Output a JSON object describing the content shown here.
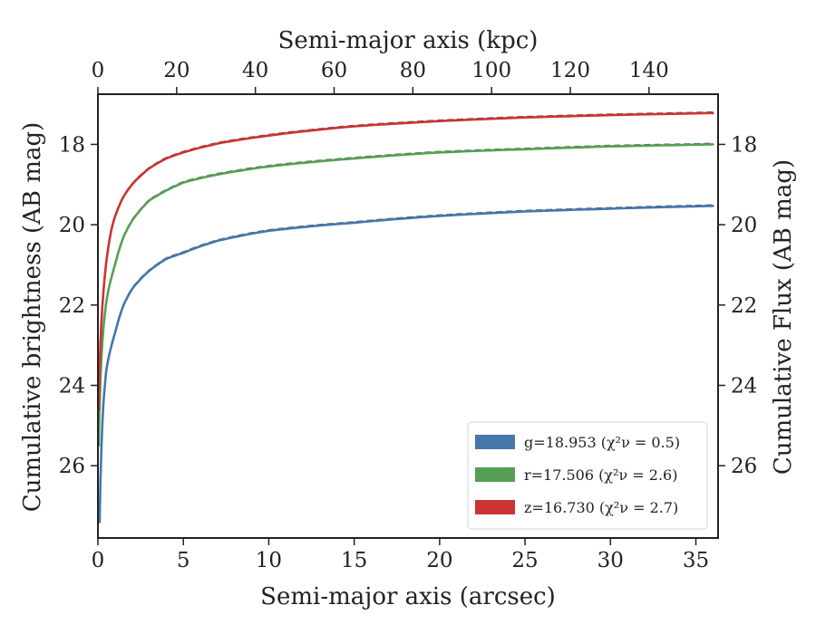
{
  "chart_data": {
    "type": "line",
    "xlabel": "Semi-major axis (arcsec)",
    "ylabel": "Cumulative brightness (AB mag)",
    "x2label": "Semi-major axis (kpc)",
    "y2label": "Cumulative Flux (AB mag)",
    "xlim": [
      0,
      36.3
    ],
    "ylim": [
      27.8,
      16.75
    ],
    "y_inverted": true,
    "x_ticks": [
      0,
      5,
      10,
      15,
      20,
      25,
      30,
      35
    ],
    "x_tick_labels": [
      "0",
      "5",
      "10",
      "15",
      "20",
      "25",
      "30",
      "35"
    ],
    "x2_ticks": [
      0,
      20,
      40,
      60,
      80,
      100,
      120,
      140
    ],
    "x2_tick_labels": [
      "0",
      "20",
      "40",
      "60",
      "80",
      "100",
      "120",
      "140"
    ],
    "x2_per_x": 4.34,
    "y_ticks": [
      18,
      20,
      22,
      24,
      26
    ],
    "y_tick_labels": [
      "18",
      "20",
      "22",
      "24",
      "26"
    ],
    "legend_position": "lower-right",
    "grid": false,
    "series": [
      {
        "name": "g=18.953 (χ²ν = 0.5)",
        "color": "#4477aa",
        "x": [
          0.1,
          0.3,
          0.5,
          0.8,
          1.0,
          1.5,
          2.0,
          3.0,
          4.0,
          5.0,
          7.0,
          10.0,
          15.0,
          20.0,
          25.0,
          30.0,
          36.0
        ],
        "y": [
          27.4,
          24.6,
          23.6,
          23.0,
          22.7,
          22.0,
          21.6,
          21.15,
          20.85,
          20.7,
          20.4,
          20.15,
          19.95,
          19.78,
          19.67,
          19.6,
          19.53
        ]
      },
      {
        "name": "r=17.506 (χ²ν = 2.6)",
        "color": "#55a055",
        "x": [
          0.05,
          0.1,
          0.3,
          0.5,
          0.8,
          1.0,
          1.5,
          2.0,
          3.0,
          4.0,
          5.0,
          7.0,
          10.0,
          15.0,
          20.0,
          25.0,
          30.0,
          36.0
        ],
        "y": [
          25.5,
          24.5,
          22.7,
          21.9,
          21.3,
          21.0,
          20.3,
          19.9,
          19.4,
          19.15,
          18.95,
          18.75,
          18.55,
          18.35,
          18.2,
          18.12,
          18.05,
          18.0
        ]
      },
      {
        "name": "z=16.730 (χ²ν = 2.7)",
        "color": "#cc3333",
        "x": [
          0.05,
          0.1,
          0.3,
          0.5,
          0.8,
          1.0,
          1.5,
          2.0,
          3.0,
          4.0,
          5.0,
          7.0,
          10.0,
          15.0,
          20.0,
          25.0,
          30.0,
          36.0
        ],
        "y": [
          24.6,
          23.6,
          21.8,
          20.9,
          20.1,
          19.8,
          19.3,
          19.0,
          18.6,
          18.35,
          18.2,
          17.98,
          17.78,
          17.55,
          17.42,
          17.33,
          17.27,
          17.22
        ]
      }
    ]
  }
}
